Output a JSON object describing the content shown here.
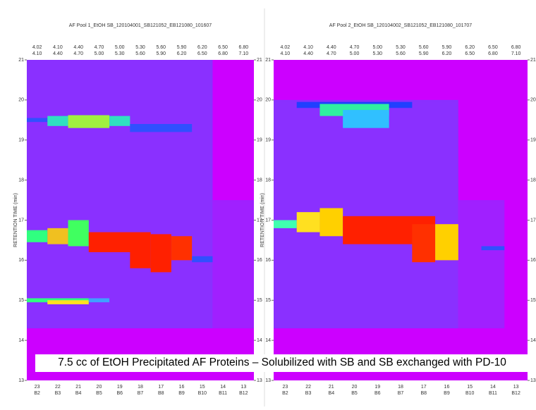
{
  "panels": [
    {
      "title": "AF Pool 1_EtOH SB_120104001_SB121052_EB121080_101607",
      "y_label": "RETENTION TIME (min)",
      "top_labels_1": [
        "4.02",
        "4.10",
        "4.40",
        "4.70",
        "5.00",
        "5.30",
        "5.60",
        "5.90",
        "6.20",
        "6.50",
        "6.80"
      ],
      "top_labels_2": [
        "4.10",
        "4.40",
        "4.70",
        "5.00",
        "5.30",
        "5.60",
        "5.90",
        "6.20",
        "6.50",
        "6.80",
        "7.10"
      ],
      "y_ticks": [
        "21",
        "20",
        "19",
        "18",
        "17",
        "16",
        "15",
        "14",
        "13"
      ],
      "bottom_labels_1": [
        "23",
        "22",
        "21",
        "20",
        "19",
        "18",
        "17",
        "16",
        "15",
        "14",
        "13"
      ],
      "bottom_labels_2": [
        "B2",
        "B3",
        "B4",
        "B5",
        "B6",
        "B7",
        "B8",
        "B9",
        "B10",
        "B11",
        "B12"
      ]
    },
    {
      "title": "AF Pool 2_EtOH SB_120104002_SB121052_EB121080_101707",
      "y_label": "RETENTION TIME (min)",
      "top_labels_1": [
        "4.02",
        "4.10",
        "4.40",
        "4.70",
        "5.00",
        "5.30",
        "5.60",
        "5.90",
        "6.20",
        "6.50",
        "6.80"
      ],
      "top_labels_2": [
        "4.10",
        "4.40",
        "4.70",
        "5.00",
        "5.30",
        "5.60",
        "5.90",
        "6.20",
        "6.50",
        "6.80",
        "7.10"
      ],
      "y_ticks": [
        "21",
        "20",
        "19",
        "18",
        "17",
        "16",
        "15",
        "14",
        "13"
      ],
      "bottom_labels_1": [
        "23",
        "22",
        "21",
        "20",
        "19",
        "18",
        "17",
        "16",
        "15",
        "14",
        "13"
      ],
      "bottom_labels_2": [
        "B2",
        "B3",
        "B4",
        "B5",
        "B6",
        "B7",
        "B8",
        "B9",
        "B10",
        "B11",
        "B12"
      ]
    }
  ],
  "caption": "7.5 cc of EtOH Precipitated AF Proteins – Solubilized with SB and SB exchanged with PD-10"
}
